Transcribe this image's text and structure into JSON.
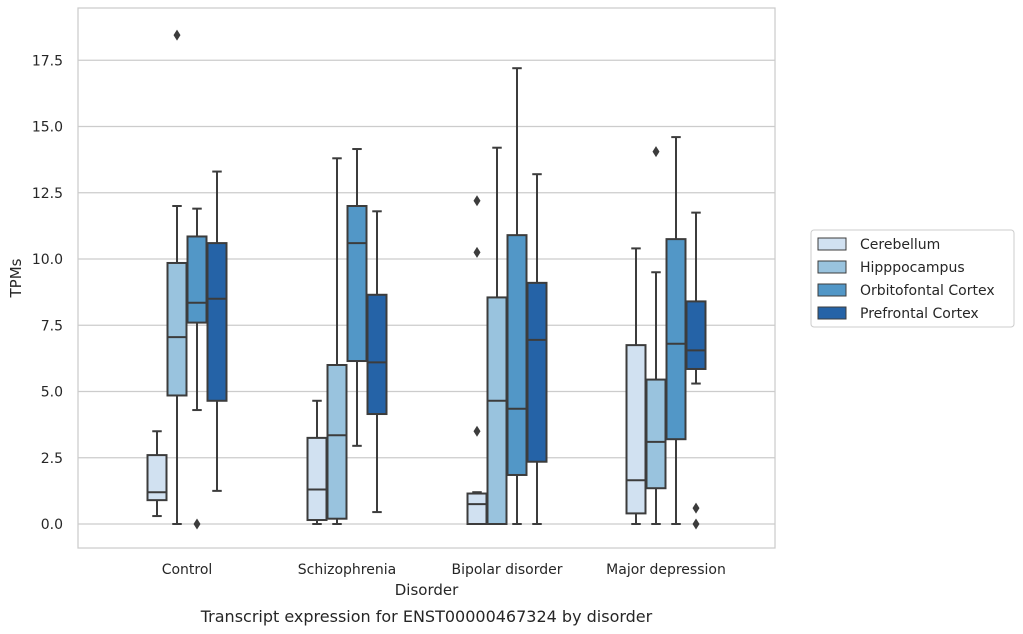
{
  "caption": "Transcript expression for ENST00000467324 by disorder",
  "chart_data": {
    "type": "box",
    "xlabel": "Disorder",
    "ylabel": "TPMs",
    "ylim": [
      -0.8,
      19.4
    ],
    "yticks": [
      0.0,
      2.5,
      5.0,
      7.5,
      10.0,
      12.5,
      15.0,
      17.5
    ],
    "ytick_labels": [
      "0.0",
      "2.5",
      "5.0",
      "7.5",
      "10.0",
      "12.5",
      "15.0",
      "17.5"
    ],
    "grid": "horizontal",
    "legend_position": "right",
    "categories": [
      "Control",
      "Schizophrenia",
      "Bipolar disorder",
      "Major depression"
    ],
    "series": [
      {
        "name": "Cerebellum",
        "color": "#d1e1f1",
        "boxes": [
          {
            "whisker_low": 0.3,
            "q1": 0.9,
            "median": 1.2,
            "q3": 2.6,
            "whisker_high": 3.5,
            "outliers": []
          },
          {
            "whisker_low": 0.0,
            "q1": 0.15,
            "median": 1.3,
            "q3": 3.25,
            "whisker_high": 4.65,
            "outliers": []
          },
          {
            "whisker_low": 0.0,
            "q1": 0.0,
            "median": 0.75,
            "q3": 1.15,
            "whisker_high": 1.2,
            "outliers": [
              3.5,
              10.25,
              12.2
            ]
          },
          {
            "whisker_low": 0.0,
            "q1": 0.4,
            "median": 1.65,
            "q3": 6.75,
            "whisker_high": 10.4,
            "outliers": []
          }
        ]
      },
      {
        "name": "Hipppocampus",
        "color": "#99c3de",
        "boxes": [
          {
            "whisker_low": 0.0,
            "q1": 4.85,
            "median": 7.05,
            "q3": 9.85,
            "whisker_high": 12.0,
            "outliers": [
              18.45
            ]
          },
          {
            "whisker_low": 0.0,
            "q1": 0.2,
            "median": 3.35,
            "q3": 6.0,
            "whisker_high": 13.8,
            "outliers": []
          },
          {
            "whisker_low": 0.0,
            "q1": 0.0,
            "median": 4.65,
            "q3": 8.55,
            "whisker_high": 14.2,
            "outliers": []
          },
          {
            "whisker_low": 0.0,
            "q1": 1.35,
            "median": 3.1,
            "q3": 5.45,
            "whisker_high": 9.5,
            "outliers": [
              14.05
            ]
          }
        ]
      },
      {
        "name": "Orbitofontal Cortex",
        "color": "#5297c7",
        "boxes": [
          {
            "whisker_low": 4.3,
            "q1": 7.6,
            "median": 8.35,
            "q3": 10.85,
            "whisker_high": 11.9,
            "outliers": [
              0.0
            ]
          },
          {
            "whisker_low": 2.95,
            "q1": 6.15,
            "median": 10.6,
            "q3": 12.0,
            "whisker_high": 14.15,
            "outliers": []
          },
          {
            "whisker_low": 0.0,
            "q1": 1.85,
            "median": 4.35,
            "q3": 10.9,
            "whisker_high": 17.2,
            "outliers": []
          },
          {
            "whisker_low": 0.0,
            "q1": 3.2,
            "median": 6.8,
            "q3": 10.75,
            "whisker_high": 14.6,
            "outliers": []
          }
        ]
      },
      {
        "name": "Prefrontal Cortex",
        "color": "#2563a7",
        "boxes": [
          {
            "whisker_low": 1.25,
            "q1": 4.65,
            "median": 8.5,
            "q3": 10.6,
            "whisker_high": 13.3,
            "outliers": []
          },
          {
            "whisker_low": 0.45,
            "q1": 4.15,
            "median": 6.1,
            "q3": 8.65,
            "whisker_high": 11.8,
            "outliers": []
          },
          {
            "whisker_low": 0.0,
            "q1": 2.35,
            "median": 6.95,
            "q3": 9.1,
            "whisker_high": 13.2,
            "outliers": []
          },
          {
            "whisker_low": 5.3,
            "q1": 5.85,
            "median": 6.55,
            "q3": 8.4,
            "whisker_high": 11.75,
            "outliers": [
              0.6,
              0.0
            ]
          }
        ]
      }
    ]
  }
}
